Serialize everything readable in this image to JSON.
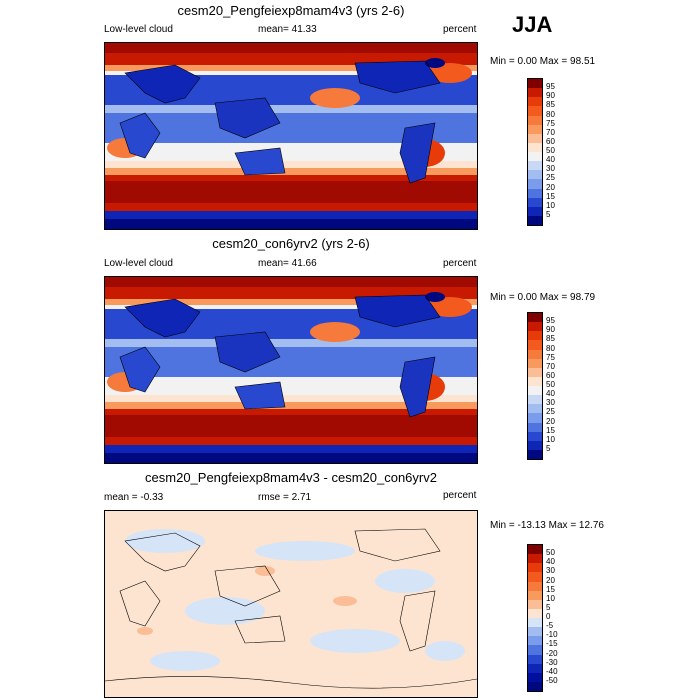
{
  "season": "JJA",
  "panels": [
    {
      "title": "cesm20_Pengfeiexp8mam4v3 (yrs 2-6)",
      "left_label": "Low-level cloud",
      "mean_label": "mean=  41.33",
      "units": "percent",
      "minmax": "Min =   0.00 Max =  98.51",
      "kind": "cloud"
    },
    {
      "title": "cesm20_con6yrv2 (yrs 2-6)",
      "left_label": "Low-level cloud",
      "mean_label": "mean=  41.66",
      "units": "percent",
      "minmax": "Min =   0.00 Max =  98.79",
      "kind": "cloud"
    },
    {
      "title": "cesm20_Pengfeiexp8mam4v3 - cesm20_con6yrv2",
      "left_label": "mean =  -0.33",
      "mean_label": "rmse =   2.71",
      "units": "percent",
      "minmax": "Min = -13.13 Max =  12.76",
      "kind": "diff"
    }
  ],
  "colorbars": {
    "cloud": {
      "labels": [
        "95",
        "90",
        "85",
        "80",
        "75",
        "70",
        "60",
        "50",
        "40",
        "30",
        "25",
        "20",
        "15",
        "10",
        "5"
      ],
      "colors": [
        "#800000",
        "#c81a00",
        "#e83b0a",
        "#f25a1e",
        "#f57a3c",
        "#f8995d",
        "#fbbd95",
        "#fde4d0",
        "#f2f2f2",
        "#c9d9f5",
        "#a3bdf0",
        "#7a9ceb",
        "#4f74e0",
        "#2848d0",
        "#0f25b5",
        "#000880"
      ]
    },
    "diff": {
      "labels": [
        "50",
        "40",
        "30",
        "20",
        "15",
        "10",
        "5",
        "0",
        "-5",
        "-10",
        "-15",
        "-20",
        "-30",
        "-40",
        "-50"
      ],
      "colors": [
        "#800000",
        "#c81a00",
        "#e83b0a",
        "#f25a1e",
        "#f57a3c",
        "#f8995d",
        "#fbbd95",
        "#fde4d0",
        "#d6e4f8",
        "#a3bdf0",
        "#7a9ceb",
        "#4f74e0",
        "#2848d0",
        "#0f25b5",
        "#000f9e",
        "#000880"
      ]
    }
  }
}
